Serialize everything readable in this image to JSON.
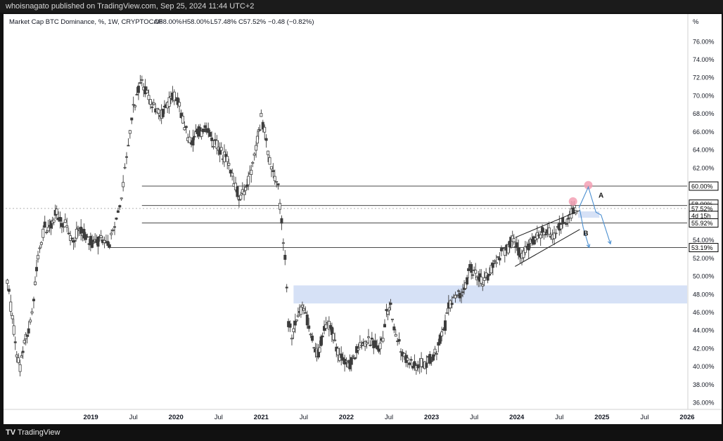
{
  "header": {
    "publish_line": "whoisnagato published on TradingView.com, Sep 25, 2024 11:44 UTC+2"
  },
  "footer": {
    "logo_text": "TV",
    "brand": "TradingView"
  },
  "colors": {
    "candle": "#3d3d3d",
    "grid_line": "#4a4a4a",
    "zone_fill": "#cfdcf5",
    "arrow_blue": "#4b8fd0",
    "marker_pink": "#f3a0b4",
    "label_black": "#000000"
  },
  "chart_data": {
    "type": "candlestick",
    "title": "Market Cap BTC Dominance, %, 1W, CRYPTOCAP",
    "ohlc_labels": {
      "o": "O58.00%",
      "h": "H58.00%",
      "l": "L57.48%",
      "c": "C57.52%",
      "chg": "−0.48 (−0.82%)"
    },
    "y_axis": {
      "unit": "%",
      "range": [
        35.5,
        77.5
      ],
      "ticks": [
        "76.00%",
        "74.00%",
        "72.00%",
        "70.00%",
        "68.00%",
        "66.00%",
        "64.00%",
        "62.00%",
        "60.00%",
        "58.00%",
        "56.00%",
        "54.00%",
        "52.00%",
        "50.00%",
        "48.00%",
        "46.00%",
        "44.00%",
        "42.00%",
        "40.00%",
        "38.00%",
        "36.00%"
      ],
      "tick_values": [
        76,
        74,
        72,
        70,
        68,
        66,
        64,
        62,
        60,
        58,
        56,
        54,
        52,
        50,
        48,
        46,
        44,
        42,
        40,
        38,
        36
      ]
    },
    "x_axis": {
      "range": [
        2018.0,
        2026.0
      ],
      "tick_labels": [
        "2019",
        "Jul",
        "2020",
        "Jul",
        "2021",
        "Jul",
        "2022",
        "Jul",
        "2023",
        "Jul",
        "2024",
        "Jul",
        "2025",
        "Jul",
        "2026"
      ],
      "tick_positions": [
        2019.0,
        2019.5,
        2020.0,
        2020.5,
        2021.0,
        2021.5,
        2022.0,
        2022.5,
        2023.0,
        2023.5,
        2024.0,
        2024.5,
        2025.0,
        2025.5,
        2026.0
      ],
      "bold_labels": [
        "2019",
        "2020",
        "2021",
        "2022",
        "2023",
        "2024",
        "2025",
        "2026"
      ]
    },
    "price_labels": [
      {
        "text": "60.00%",
        "value": 60.0,
        "style": "outline"
      },
      {
        "text": "58.00%",
        "value": 58.0,
        "style": "outline"
      },
      {
        "text": "57.52%",
        "value": 57.52,
        "style": "outline"
      },
      {
        "text": "4d 15h",
        "value": 56.75,
        "style": "outline"
      },
      {
        "text": "55.92%",
        "value": 55.92,
        "style": "outline"
      },
      {
        "text": "53.19%",
        "value": 53.19,
        "style": "outline"
      }
    ],
    "horizontal_levels": [
      {
        "value": 60.0,
        "x_start": 2019.6,
        "x_end": 2026.0
      },
      {
        "value": 57.85,
        "x_start": 2019.6,
        "x_end": 2026.0
      },
      {
        "value": 55.92,
        "x_start": 2019.6,
        "x_end": 2026.0
      },
      {
        "value": 53.19,
        "x_start": 2019.2,
        "x_end": 2026.0
      }
    ],
    "zones": [
      {
        "y_top": 49.0,
        "y_bottom": 47.0,
        "x_start": 2021.38,
        "x_end": 2026.0
      },
      {
        "y_top": 57.2,
        "y_bottom": 56.5,
        "x_start": 2024.72,
        "x_end": 2024.97
      }
    ],
    "wedge": {
      "upper": [
        [
          2023.98,
          54.3
        ],
        [
          2024.74,
          57.3
        ]
      ],
      "lower": [
        [
          2023.98,
          51.1
        ],
        [
          2024.74,
          55.2
        ]
      ]
    },
    "annotations": [
      {
        "text": "A",
        "x": 2024.96,
        "y": 58.7
      },
      {
        "text": "B",
        "x": 2024.78,
        "y": 54.5
      }
    ],
    "markers": [
      {
        "x": 2024.84,
        "y": 60.1
      },
      {
        "x": 2024.66,
        "y": 58.3
      }
    ],
    "projected_path_A": [
      [
        2024.73,
        57.6
      ],
      [
        2024.84,
        59.9
      ],
      [
        2024.93,
        57.1
      ],
      [
        2024.99,
        56.8
      ],
      [
        2025.1,
        53.6
      ]
    ],
    "projected_path_B": [
      [
        2024.74,
        57.4
      ],
      [
        2024.78,
        55.4
      ],
      [
        2024.85,
        53.2
      ]
    ],
    "series": [
      {
        "points": [
          [
            2018.02,
            49.5
          ],
          [
            2018.08,
            45.2
          ],
          [
            2018.13,
            41.5
          ],
          [
            2018.17,
            39.9
          ],
          [
            2018.22,
            42.5
          ],
          [
            2018.27,
            44.0
          ],
          [
            2018.33,
            47.0
          ],
          [
            2018.38,
            52.5
          ],
          [
            2018.42,
            53.8
          ],
          [
            2018.46,
            55.5
          ],
          [
            2018.5,
            55.0
          ],
          [
            2018.55,
            56.2
          ],
          [
            2018.6,
            57.0
          ],
          [
            2018.66,
            56.0
          ],
          [
            2018.72,
            55.5
          ],
          [
            2018.78,
            53.8
          ],
          [
            2018.85,
            55.0
          ],
          [
            2018.92,
            54.8
          ],
          [
            2018.98,
            54.0
          ],
          [
            2019.05,
            53.5
          ],
          [
            2019.12,
            54.3
          ],
          [
            2019.18,
            54.0
          ],
          [
            2019.22,
            53.5
          ],
          [
            2019.3,
            56.5
          ],
          [
            2019.38,
            60.0
          ],
          [
            2019.44,
            64.5
          ],
          [
            2019.5,
            68.5
          ],
          [
            2019.54,
            70.0
          ],
          [
            2019.58,
            71.5
          ],
          [
            2019.62,
            71.0
          ],
          [
            2019.66,
            70.5
          ],
          [
            2019.72,
            69.0
          ],
          [
            2019.78,
            68.5
          ],
          [
            2019.83,
            68.0
          ],
          [
            2019.9,
            69.0
          ],
          [
            2019.96,
            70.0
          ],
          [
            2020.02,
            69.5
          ],
          [
            2020.08,
            67.5
          ],
          [
            2020.14,
            65.5
          ],
          [
            2020.2,
            65.0
          ],
          [
            2020.25,
            66.0
          ],
          [
            2020.3,
            66.0
          ],
          [
            2020.36,
            66.5
          ],
          [
            2020.42,
            65.0
          ],
          [
            2020.48,
            64.5
          ],
          [
            2020.55,
            63.5
          ],
          [
            2020.62,
            62.5
          ],
          [
            2020.68,
            60.5
          ],
          [
            2020.74,
            58.8
          ],
          [
            2020.8,
            59.5
          ],
          [
            2020.85,
            60.5
          ],
          [
            2020.9,
            62.5
          ],
          [
            2020.94,
            64.5
          ],
          [
            2020.97,
            66.0
          ],
          [
            2021.0,
            67.5
          ],
          [
            2021.04,
            66.0
          ],
          [
            2021.08,
            63.5
          ],
          [
            2021.12,
            62.0
          ],
          [
            2021.16,
            61.0
          ],
          [
            2021.2,
            60.0
          ],
          [
            2021.24,
            56.0
          ],
          [
            2021.28,
            52.0
          ],
          [
            2021.32,
            45.0
          ],
          [
            2021.36,
            43.5
          ],
          [
            2021.4,
            45.0
          ],
          [
            2021.45,
            46.0
          ],
          [
            2021.5,
            46.5
          ],
          [
            2021.56,
            44.5
          ],
          [
            2021.62,
            42.0
          ],
          [
            2021.67,
            41.5
          ],
          [
            2021.72,
            43.5
          ],
          [
            2021.78,
            45.0
          ],
          [
            2021.83,
            44.0
          ],
          [
            2021.9,
            41.5
          ],
          [
            2021.96,
            40.5
          ],
          [
            2022.02,
            40.0
          ],
          [
            2022.08,
            41.0
          ],
          [
            2022.14,
            42.0
          ],
          [
            2022.2,
            42.5
          ],
          [
            2022.26,
            43.0
          ],
          [
            2022.32,
            42.5
          ],
          [
            2022.38,
            42.0
          ],
          [
            2022.43,
            43.0
          ],
          [
            2022.47,
            46.0
          ],
          [
            2022.52,
            46.5
          ],
          [
            2022.56,
            44.0
          ],
          [
            2022.62,
            42.5
          ],
          [
            2022.68,
            41.0
          ],
          [
            2022.74,
            40.5
          ],
          [
            2022.8,
            40.0
          ],
          [
            2022.86,
            40.5
          ],
          [
            2022.92,
            40.2
          ],
          [
            2022.98,
            40.8
          ],
          [
            2023.04,
            41.5
          ],
          [
            2023.1,
            43.0
          ],
          [
            2023.16,
            44.5
          ],
          [
            2023.2,
            46.5
          ],
          [
            2023.26,
            47.5
          ],
          [
            2023.3,
            48.0
          ],
          [
            2023.35,
            47.8
          ],
          [
            2023.4,
            48.8
          ],
          [
            2023.45,
            51.0
          ],
          [
            2023.5,
            50.5
          ],
          [
            2023.55,
            50.0
          ],
          [
            2023.6,
            49.5
          ],
          [
            2023.66,
            50.0
          ],
          [
            2023.72,
            51.0
          ],
          [
            2023.78,
            52.0
          ],
          [
            2023.84,
            52.8
          ],
          [
            2023.9,
            53.0
          ],
          [
            2023.95,
            54.2
          ],
          [
            2024.0,
            53.3
          ],
          [
            2024.04,
            52.0
          ],
          [
            2024.08,
            52.5
          ],
          [
            2024.12,
            53.0
          ],
          [
            2024.18,
            53.8
          ],
          [
            2024.24,
            54.3
          ],
          [
            2024.3,
            55.0
          ],
          [
            2024.36,
            55.0
          ],
          [
            2024.42,
            54.5
          ],
          [
            2024.48,
            55.3
          ],
          [
            2024.54,
            56.0
          ],
          [
            2024.6,
            56.5
          ],
          [
            2024.66,
            57.3
          ],
          [
            2024.71,
            57.52
          ]
        ]
      }
    ]
  }
}
